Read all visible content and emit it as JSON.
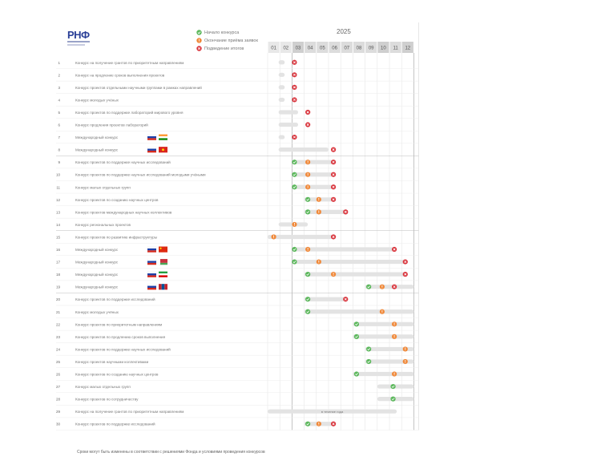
{
  "header": {
    "logo": "РНФ",
    "year": "2025"
  },
  "legend": {
    "items": [
      {
        "label": "Начало конкурса",
        "color": "#5cb85c"
      },
      {
        "label": "Окончание приёма заявок",
        "color": "#f0893a"
      },
      {
        "label": "Подведение итогов",
        "color": "#d9363e"
      }
    ]
  },
  "footnote": "Сроки могут быть изменены в соответствии с решениями Фонда и условиями проведения конкурсов",
  "chart_data": {
    "type": "table",
    "title": "",
    "months": [
      "01",
      "02",
      "03",
      "04",
      "05",
      "06",
      "07",
      "08",
      "09",
      "10",
      "11",
      "12"
    ],
    "rows": [
      {
        "num": "1",
        "label": "Конкурс на получение грантов по приоритетным направлениям",
        "flags": [],
        "bar": [
          1.9,
          2.4
        ],
        "markers": [
          {
            "m": 3.2,
            "t": "end"
          }
        ]
      },
      {
        "num": "2",
        "label": "Конкурс на продление сроков выполнения проектов",
        "flags": [],
        "bar": [
          1.9,
          2.4
        ],
        "markers": [
          {
            "m": 3.2,
            "t": "end"
          }
        ]
      },
      {
        "num": "3",
        "label": "Конкурс проектов отдельными научными группами в рамках направлений",
        "flags": [],
        "bar": [
          1.9,
          2.4
        ],
        "markers": [
          {
            "m": 3.2,
            "t": "end"
          }
        ]
      },
      {
        "num": "4",
        "label": "Конкурс молодых учёных",
        "flags": [],
        "bar": [
          1.9,
          2.4
        ],
        "markers": [
          {
            "m": 3.2,
            "t": "end"
          }
        ]
      },
      {
        "num": "5",
        "label": "Конкурс проектов по поддержке лабораторий мирового уровня",
        "flags": [],
        "bar": [
          1.9,
          3.5
        ],
        "markers": [
          {
            "m": 4.3,
            "t": "end"
          }
        ]
      },
      {
        "num": "6",
        "label": "Конкурс продления проектов лабораторий",
        "flags": [],
        "bar": [
          1.9,
          3.5
        ],
        "markers": [
          {
            "m": 4.3,
            "t": "end"
          }
        ]
      },
      {
        "num": "7",
        "label": "Международный конкурс",
        "flags": [
          "ru",
          "in"
        ],
        "bar": [
          1.9,
          2.4
        ],
        "markers": [
          {
            "m": 3.2,
            "t": "end"
          }
        ]
      },
      {
        "num": "8",
        "label": "Международный конкурс",
        "flags": [
          "ru",
          "vn"
        ],
        "bar": [
          1.9,
          6.0
        ],
        "markers": [
          {
            "m": 6.4,
            "t": "end"
          }
        ]
      },
      {
        "num": "9",
        "label": "Конкурс проектов по поддержке научных исследований",
        "flags": [],
        "bar": [
          3.0,
          6.4
        ],
        "markers": [
          {
            "m": 3.2,
            "t": "start"
          },
          {
            "m": 4.3,
            "t": "mid"
          },
          {
            "m": 6.4,
            "t": "end"
          }
        ]
      },
      {
        "num": "10",
        "label": "Конкурс проектов по поддержке научных исследований молодыми учёными",
        "flags": [],
        "bar": [
          3.0,
          6.4
        ],
        "markers": [
          {
            "m": 3.2,
            "t": "start"
          },
          {
            "m": 4.3,
            "t": "mid"
          },
          {
            "m": 6.4,
            "t": "end"
          }
        ]
      },
      {
        "num": "11",
        "label": "Конкурс малых отдельных групп",
        "flags": [],
        "bar": [
          3.2,
          6.4
        ],
        "markers": [
          {
            "m": 3.2,
            "t": "start"
          },
          {
            "m": 4.3,
            "t": "mid"
          },
          {
            "m": 6.4,
            "t": "end"
          }
        ]
      },
      {
        "num": "12",
        "label": "Конкурс проектов по созданию научных центров",
        "flags": [],
        "bar": [
          4.0,
          6.4
        ],
        "markers": [
          {
            "m": 4.3,
            "t": "start"
          },
          {
            "m": 5.2,
            "t": "mid"
          },
          {
            "m": 6.4,
            "t": "end"
          }
        ]
      },
      {
        "num": "13",
        "label": "Конкурс проектов международных научных коллективов",
        "flags": [],
        "bar": [
          4.0,
          7.4
        ],
        "markers": [
          {
            "m": 4.3,
            "t": "start"
          },
          {
            "m": 5.2,
            "t": "mid"
          },
          {
            "m": 7.4,
            "t": "end"
          }
        ]
      },
      {
        "num": "14",
        "label": "Конкурс региональных проектов",
        "flags": [],
        "bar": [
          1.9,
          4.3
        ],
        "markers": [
          {
            "m": 3.2,
            "t": "mid"
          }
        ]
      },
      {
        "num": "15",
        "label": "Конкурс проектов по развитию инфраструктуры",
        "flags": [],
        "bar": [
          1.0,
          6.4
        ],
        "markers": [
          {
            "m": 1.5,
            "t": "mid"
          },
          {
            "m": 6.4,
            "t": "end"
          }
        ]
      },
      {
        "num": "16",
        "label": "Международный конкурс",
        "flags": [
          "ru",
          "cn"
        ],
        "bar": [
          3.0,
          11.4
        ],
        "markers": [
          {
            "m": 3.2,
            "t": "start"
          },
          {
            "m": 4.3,
            "t": "mid"
          },
          {
            "m": 11.4,
            "t": "end"
          }
        ]
      },
      {
        "num": "17",
        "label": "Международный конкурс",
        "flags": [
          "ru",
          "by"
        ],
        "bar": [
          3.0,
          12.3
        ],
        "markers": [
          {
            "m": 3.2,
            "t": "start"
          },
          {
            "m": 5.2,
            "t": "mid"
          },
          {
            "m": 12.3,
            "t": "end"
          }
        ]
      },
      {
        "num": "18",
        "label": "Международный конкурс",
        "flags": [
          "ru",
          "ir"
        ],
        "bar": [
          4.0,
          12.3
        ],
        "markers": [
          {
            "m": 4.3,
            "t": "start"
          },
          {
            "m": 6.4,
            "t": "mid"
          },
          {
            "m": 12.3,
            "t": "end"
          }
        ]
      },
      {
        "num": "19",
        "label": "Международный конкурс",
        "flags": [
          "ru",
          "mn"
        ],
        "bar": [
          9.0,
          13.0
        ],
        "markers": [
          {
            "m": 9.3,
            "t": "start"
          },
          {
            "m": 10.4,
            "t": "mid"
          },
          {
            "m": 11.4,
            "t": "end"
          }
        ]
      },
      {
        "num": "20",
        "label": "Конкурс проектов по поддержке исследований",
        "flags": [],
        "bar": [
          4.0,
          7.4
        ],
        "markers": [
          {
            "m": 4.3,
            "t": "start"
          },
          {
            "m": 7.4,
            "t": "end"
          }
        ]
      },
      {
        "num": "21",
        "label": "Конкурс молодых учёных",
        "flags": [],
        "bar": [
          4.0,
          13.0
        ],
        "markers": [
          {
            "m": 4.3,
            "t": "start"
          },
          {
            "m": 10.4,
            "t": "mid"
          }
        ]
      },
      {
        "num": "22",
        "label": "Конкурс проектов по приоритетным направлениям",
        "flags": [],
        "bar": [
          8.0,
          13.0
        ],
        "markers": [
          {
            "m": 8.3,
            "t": "start"
          },
          {
            "m": 11.4,
            "t": "mid"
          }
        ]
      },
      {
        "num": "23",
        "label": "Конкурс проектов по продлению сроков выполнения",
        "flags": [],
        "bar": [
          8.0,
          13.0
        ],
        "markers": [
          {
            "m": 8.3,
            "t": "start"
          },
          {
            "m": 11.4,
            "t": "mid"
          }
        ]
      },
      {
        "num": "24",
        "label": "Конкурс проектов по поддержке научных исследований",
        "flags": [],
        "bar": [
          9.0,
          13.0
        ],
        "markers": [
          {
            "m": 9.3,
            "t": "start"
          },
          {
            "m": 12.3,
            "t": "mid"
          }
        ]
      },
      {
        "num": "25",
        "label": "Конкурс проектов научными коллективами",
        "flags": [],
        "bar": [
          9.0,
          13.0
        ],
        "markers": [
          {
            "m": 9.3,
            "t": "start"
          },
          {
            "m": 12.3,
            "t": "mid"
          }
        ]
      },
      {
        "num": "26",
        "label": "Конкурс проектов по созданию научных центров",
        "flags": [],
        "bar": [
          8.0,
          13.0
        ],
        "markers": [
          {
            "m": 8.3,
            "t": "start"
          },
          {
            "m": 11.4,
            "t": "mid"
          }
        ]
      },
      {
        "num": "27",
        "label": "Конкурс малых отдельных групп",
        "flags": [],
        "bar": [
          10.0,
          13.0
        ],
        "markers": [
          {
            "m": 11.3,
            "t": "start"
          }
        ]
      },
      {
        "num": "28",
        "label": "Конкурс проектов по сотрудничеству",
        "flags": [],
        "bar": [
          10.0,
          13.0
        ],
        "markers": [
          {
            "m": 11.3,
            "t": "start"
          }
        ]
      },
      {
        "num": "29",
        "label": "Конкурс на получение грантов по приоритетным направлениям",
        "flags": [],
        "bar": [
          1.0,
          11.6
        ],
        "markers": [],
        "barText": "в течение года"
      },
      {
        "num": "30",
        "label": "Конкурс проектов по поддержке исследований",
        "flags": [],
        "bar": [
          4.0,
          6.4
        ],
        "markers": [
          {
            "m": 4.3,
            "t": "start"
          },
          {
            "m": 5.2,
            "t": "mid"
          },
          {
            "m": 6.4,
            "t": "end"
          }
        ]
      }
    ]
  }
}
